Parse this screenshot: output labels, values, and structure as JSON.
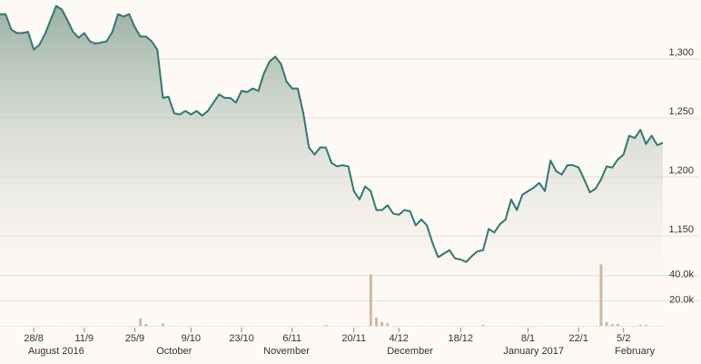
{
  "chart_data": {
    "type": "line",
    "categories": [
      null,
      null,
      null,
      null,
      null,
      null,
      "28/8",
      null,
      null,
      null,
      null,
      null,
      null,
      null,
      null,
      "11/9",
      null,
      null,
      null,
      null,
      null,
      null,
      null,
      null,
      "25/9",
      null,
      null,
      null,
      null,
      null,
      null,
      null,
      null,
      null,
      "9/10",
      null,
      null,
      null,
      null,
      null,
      null,
      null,
      null,
      "23/10",
      null,
      null,
      null,
      null,
      null,
      null,
      null,
      null,
      "6/11",
      null,
      null,
      null,
      null,
      null,
      null,
      null,
      null,
      null,
      null,
      "20/11",
      null,
      null,
      null,
      null,
      null,
      null,
      null,
      "4/12",
      null,
      null,
      null,
      null,
      null,
      null,
      null,
      null,
      null,
      null,
      "18/12",
      null,
      null,
      null,
      null,
      null,
      null,
      null,
      null,
      null,
      null,
      null,
      "8/1",
      null,
      null,
      null,
      null,
      null,
      null,
      null,
      null,
      "22/1",
      null,
      null,
      null,
      null,
      null,
      null,
      null,
      "5/2",
      null,
      null,
      null,
      null,
      null,
      null,
      null
    ],
    "month_labels": [
      null,
      null,
      null,
      null,
      null,
      null,
      null,
      null,
      null,
      null,
      "August 2016",
      null,
      null,
      null,
      null,
      null,
      null,
      null,
      null,
      null,
      null,
      null,
      null,
      null,
      null,
      null,
      null,
      null,
      null,
      null,
      null,
      "October",
      null,
      null,
      null,
      null,
      null,
      null,
      null,
      null,
      null,
      null,
      null,
      null,
      null,
      null,
      null,
      null,
      null,
      null,
      null,
      "November",
      null,
      null,
      null,
      null,
      null,
      null,
      null,
      null,
      null,
      null,
      null,
      null,
      null,
      null,
      null,
      null,
      null,
      null,
      null,
      null,
      null,
      "December",
      null,
      null,
      null,
      null,
      null,
      null,
      null,
      null,
      null,
      null,
      null,
      null,
      null,
      null,
      null,
      null,
      null,
      null,
      null,
      null,
      null,
      "January 2017",
      null,
      null,
      null,
      null,
      null,
      null,
      null,
      null,
      null,
      null,
      null,
      null,
      null,
      null,
      null,
      null,
      null,
      "February",
      null,
      null,
      null,
      null,
      null
    ],
    "series": [
      {
        "color": "#2e7874",
        "values": [
          1338,
          1338,
          1325,
          1322,
          1322,
          1323,
          1308,
          1312,
          1321,
          1333,
          1345,
          1342,
          1333,
          1323,
          1318,
          1322,
          1315,
          1313,
          1314,
          1315,
          1323,
          1338,
          1336,
          1338,
          1327,
          1319,
          1319,
          1315,
          1308,
          1267,
          1268,
          1254,
          1253,
          1256,
          1253,
          1256,
          1252,
          1256,
          1263,
          1270,
          1267,
          1267,
          1263,
          1273,
          1272,
          1275,
          1273,
          1288,
          1298,
          1302,
          1296,
          1281,
          1275,
          1275,
          1254,
          1225,
          1219,
          1225,
          1225,
          1212,
          1209,
          1210,
          1209,
          1188,
          1181,
          1192,
          1188,
          1172,
          1172,
          1176,
          1169,
          1168,
          1172,
          1171,
          1159,
          1164,
          1159,
          1144,
          1132,
          1135,
          1138,
          1131,
          1130,
          1128,
          1133,
          1137,
          1138,
          1156,
          1153,
          1160,
          1164,
          1181,
          1172,
          1185,
          1188,
          1191,
          1195,
          1188,
          1214,
          1205,
          1202,
          1210,
          1210,
          1208,
          1198,
          1187,
          1190,
          1198,
          1209,
          1208,
          1215,
          1219,
          1235,
          1233,
          1240,
          1228,
          1235,
          1227,
          1229
        ]
      }
    ],
    "volume": {
      "color": "#cdb8a4",
      "values": [
        0,
        0,
        0,
        0,
        0,
        0,
        0,
        0,
        0,
        0,
        0,
        0,
        0,
        0,
        0,
        0,
        0,
        0,
        0,
        0,
        0,
        0,
        0,
        0,
        0,
        6000,
        1500,
        0,
        0,
        2000,
        0,
        0,
        0,
        0,
        0,
        0,
        0,
        0,
        0,
        0,
        0,
        0,
        0,
        0,
        0,
        0,
        0,
        0,
        0,
        0,
        0,
        0,
        0,
        0,
        0,
        0,
        0,
        0,
        800,
        0,
        0,
        0,
        0,
        0,
        0,
        0,
        41000,
        6500,
        3000,
        2000,
        0,
        0,
        0,
        0,
        0,
        0,
        0,
        0,
        0,
        0,
        0,
        0,
        0,
        0,
        0,
        0,
        800,
        0,
        0,
        0,
        0,
        0,
        0,
        0,
        0,
        0,
        0,
        0,
        0,
        0,
        0,
        0,
        0,
        0,
        0,
        0,
        0,
        49000,
        3000,
        1500,
        1500,
        0,
        0,
        0,
        800,
        800,
        0,
        0,
        0
      ]
    },
    "ylim": [
      1120,
      1350
    ],
    "yticks": [
      {
        "value": 1150,
        "label": "1,150"
      },
      {
        "value": 1200,
        "label": "1,200"
      },
      {
        "value": 1250,
        "label": "1,250"
      },
      {
        "value": 1300,
        "label": "1,300"
      }
    ],
    "volume_ylim": [
      0,
      50000
    ],
    "volume_yticks": [
      {
        "value": 20000,
        "label": "20.0k"
      },
      {
        "value": 40000,
        "label": "40.0k"
      }
    ],
    "grid": true
  }
}
